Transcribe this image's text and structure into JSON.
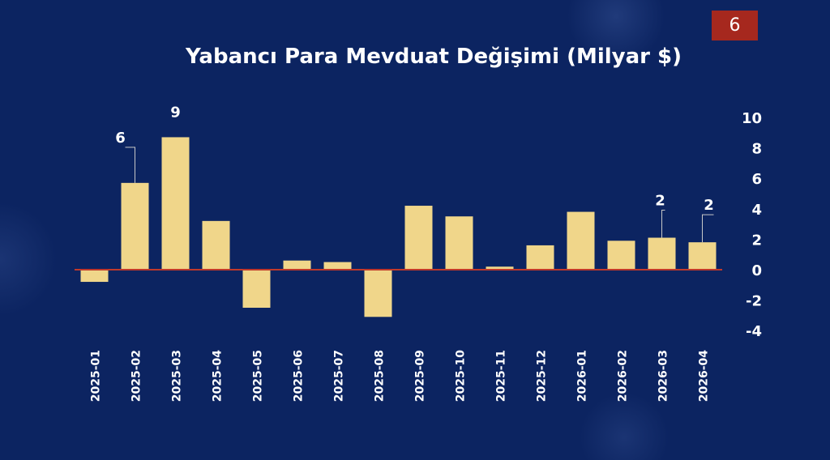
{
  "slide_number": "6",
  "colors": {
    "background": "#0c2461",
    "bar": "#f0d68a",
    "zero_line": "#c0392b",
    "slide_number_bg": "#a6281e",
    "text": "#ffffff"
  },
  "chart_data": {
    "type": "bar",
    "title": "Yabancı Para Mevduat Değişimi (Milyar $)",
    "categories": [
      "2025-01",
      "2025-02",
      "2025-03",
      "2025-04",
      "2025-05",
      "2025-06",
      "2025-07",
      "2025-08",
      "2025-09",
      "2025-10",
      "2025-11",
      "2025-12",
      "2026-01",
      "2026-02",
      "2026-03",
      "2026-04"
    ],
    "values": [
      -0.8,
      5.7,
      8.7,
      3.2,
      -2.5,
      0.6,
      0.5,
      -3.1,
      4.2,
      3.5,
      0.2,
      1.6,
      3.8,
      1.9,
      2.1,
      1.8
    ],
    "data_labels": [
      {
        "index": 1,
        "text": "6"
      },
      {
        "index": 2,
        "text": "9"
      },
      {
        "index": 14,
        "text": "2"
      },
      {
        "index": 15,
        "text": "2"
      }
    ],
    "ylim": [
      -4,
      10
    ],
    "yticks": [
      10,
      8,
      6,
      4,
      2,
      0,
      -2,
      -4
    ],
    "y_axis_side": "right",
    "grid": false,
    "xlabel": "",
    "ylabel": ""
  }
}
